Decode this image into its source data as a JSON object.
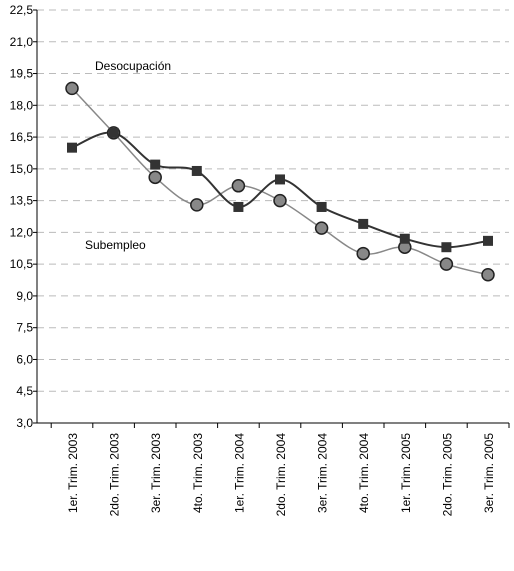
{
  "chart_data": {
    "type": "line",
    "categories": [
      "1er. Trim. 2003",
      "2do. Trim. 2003",
      "3er. Trim. 2003",
      "4to. Trim. 2003",
      "1er. Trim. 2004",
      "2do. Trim. 2004",
      "3er. Trim. 2004",
      "4to. Trim. 2004",
      "1er. Trim. 2005",
      "2do. Trim. 2005",
      "3er. Trim. 2005"
    ],
    "series": [
      {
        "name": "Desocupación",
        "color": "#888888",
        "marker": "circle",
        "values": [
          18.8,
          16.7,
          14.6,
          13.3,
          14.2,
          13.5,
          12.2,
          11.0,
          11.3,
          10.5,
          10.0
        ]
      },
      {
        "name": "Subempleo",
        "color": "#333333",
        "marker": "square",
        "values": [
          16.0,
          16.7,
          15.2,
          14.9,
          13.2,
          14.5,
          13.2,
          12.4,
          11.7,
          11.3,
          11.6
        ]
      }
    ],
    "ylim": [
      3.0,
      22.5
    ],
    "yticks": [
      {
        "value": 3.0,
        "label": "3,0"
      },
      {
        "value": 4.5,
        "label": "4,5"
      },
      {
        "value": 6.0,
        "label": "6,0"
      },
      {
        "value": 7.5,
        "label": "7,5"
      },
      {
        "value": 9.0,
        "label": "9,0"
      },
      {
        "value": 10.5,
        "label": "10,5"
      },
      {
        "value": 12.0,
        "label": "12,0"
      },
      {
        "value": 13.5,
        "label": "13,5"
      },
      {
        "value": 15.0,
        "label": "15,0"
      },
      {
        "value": 16.5,
        "label": "16,5"
      },
      {
        "value": 18.0,
        "label": "18,0"
      },
      {
        "value": 19.5,
        "label": "19,5"
      },
      {
        "value": 21.0,
        "label": "21,0"
      },
      {
        "value": 22.5,
        "label": "22,5"
      }
    ],
    "grid": true
  }
}
